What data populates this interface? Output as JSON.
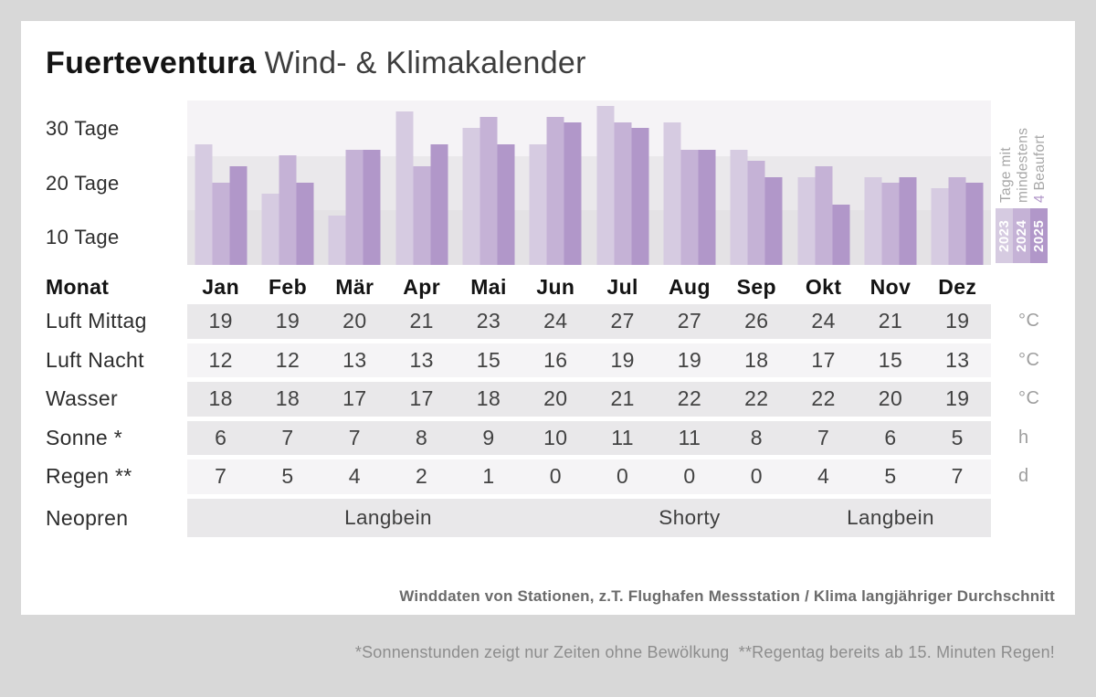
{
  "title": {
    "brand": "Fuerteventura",
    "rest": "Wind- & Klimakalender"
  },
  "chart_data": {
    "type": "bar",
    "title": "Tage mit mindestens 4 Beaufort",
    "categories": [
      "Jan",
      "Feb",
      "Mär",
      "Apr",
      "Mai",
      "Jun",
      "Jul",
      "Aug",
      "Sep",
      "Okt",
      "Nov",
      "Dez"
    ],
    "series": [
      {
        "name": "2023",
        "color": "#d6cbe1",
        "values": [
          27,
          18,
          14,
          33,
          30,
          27,
          34,
          31,
          26,
          21,
          21,
          19
        ]
      },
      {
        "name": "2024",
        "color": "#c5b2d6",
        "values": [
          20,
          25,
          26,
          23,
          32,
          32,
          31,
          26,
          24,
          23,
          20,
          21
        ]
      },
      {
        "name": "2025",
        "color": "#b197c9",
        "values": [
          23,
          20,
          26,
          27,
          27,
          31,
          30,
          26,
          21,
          16,
          21,
          20
        ]
      }
    ],
    "ylabel": "Tage",
    "ylim": [
      5,
      35
    ],
    "yticks": [
      "30 Tage",
      "20 Tage",
      "10 Tage"
    ],
    "grid": "banded",
    "legend_position": "right",
    "side_caption": {
      "lines": [
        {
          "text": "Tage mit"
        },
        {
          "text": "mindestens"
        },
        {
          "text": "4 Beaufort",
          "accent": "4"
        }
      ],
      "accent_color": "#b197c9"
    }
  },
  "table": {
    "month_header": {
      "label": "Monat",
      "months": [
        "Jan",
        "Feb",
        "Mär",
        "Apr",
        "Mai",
        "Jun",
        "Jul",
        "Aug",
        "Sep",
        "Okt",
        "Nov",
        "Dez"
      ]
    },
    "rows": [
      {
        "label": "Luft Mittag",
        "unit": "°C",
        "shade": "dark",
        "values": [
          19,
          19,
          20,
          21,
          23,
          24,
          27,
          27,
          26,
          24,
          21,
          19
        ]
      },
      {
        "label": "Luft Nacht",
        "unit": "°C",
        "shade": "light",
        "values": [
          12,
          12,
          13,
          13,
          15,
          16,
          19,
          19,
          18,
          17,
          15,
          13
        ]
      },
      {
        "label": "Wasser",
        "unit": "°C",
        "shade": "dark",
        "values": [
          18,
          18,
          17,
          17,
          18,
          20,
          21,
          22,
          22,
          22,
          20,
          19
        ]
      },
      {
        "label": "Sonne *",
        "unit": "h",
        "shade": "dark",
        "values": [
          6,
          7,
          7,
          8,
          9,
          10,
          11,
          11,
          8,
          7,
          6,
          5
        ]
      },
      {
        "label": "Regen **",
        "unit": "d",
        "shade": "light",
        "values": [
          7,
          5,
          4,
          2,
          1,
          0,
          0,
          0,
          0,
          4,
          5,
          7
        ]
      }
    ],
    "neopren": {
      "label": "Neopren",
      "shade": "dark",
      "spans": [
        {
          "text": "Langbein",
          "from": 0,
          "to": 5
        },
        {
          "text": "Shorty",
          "from": 6,
          "to": 8
        },
        {
          "text": "Langbein",
          "from": 9,
          "to": 11
        }
      ]
    }
  },
  "footer": {
    "line1": "Winddaten von Stationen, z.T. Flughafen Messstation / Klima langjähriger Durchschnitt",
    "line2": "*Sonnenstunden zeigt nur Zeiten ohne Bewölkung  **Regentag bereits ab 15. Minuten Regen!"
  },
  "colors": {
    "page_background": "#d8d8d8",
    "card_background": "#ffffff",
    "band_top": "#f5f3f6",
    "band_middle": "#eae8eb",
    "band_bottom": "#e4e2e5",
    "stripe_dark": "#e9e8ea",
    "stripe_light": "#f5f4f6",
    "accent_purple": "#b197c9"
  }
}
